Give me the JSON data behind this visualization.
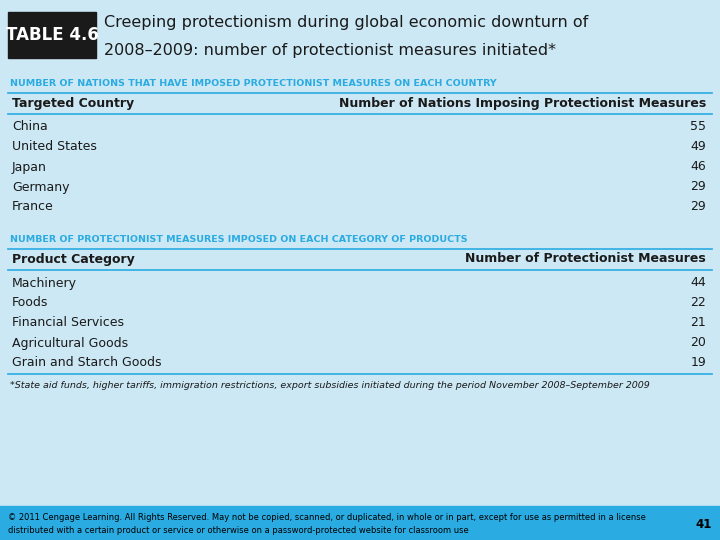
{
  "title_label": "TABLE 4.6",
  "title_text_line1": "Creeping protectionism during global economic downturn of",
  "title_text_line2": "2008–2009: number of protectionist measures initiated*",
  "section1_header": "NUMBER OF NATIONS THAT HAVE IMPOSED PROTECTIONIST MEASURES ON EACH COUNTRY",
  "section1_col1_header": "Targeted Country",
  "section1_col2_header": "Number of Nations Imposing Protectionist Measures",
  "section1_rows": [
    [
      "China",
      "55"
    ],
    [
      "United States",
      "49"
    ],
    [
      "Japan",
      "46"
    ],
    [
      "Germany",
      "29"
    ],
    [
      "France",
      "29"
    ]
  ],
  "section2_header": "NUMBER OF PROTECTIONIST MEASURES IMPOSED ON EACH CATEGORY OF PRODUCTS",
  "section2_col1_header": "Product Category",
  "section2_col2_header": "Number of Protectionist Measures",
  "section2_rows": [
    [
      "Machinery",
      "44"
    ],
    [
      "Foods",
      "22"
    ],
    [
      "Financial Services",
      "21"
    ],
    [
      "Agricultural Goods",
      "20"
    ],
    [
      "Grain and Starch Goods",
      "19"
    ]
  ],
  "footnote": "*State aid funds, higher tariffs, immigration restrictions, export subsidies initiated during the period November 2008–September 2009",
  "footer_line1": "© 2011 Cengage Learning. All Rights Reserved. May not be copied, scanned, or duplicated, in whole or in part, except for use as permitted in a license",
  "footer_line2": "distributed with a certain product or service or otherwise on a password-protected website for classroom use",
  "footer_page": "41",
  "bg_color": "#cce8f4",
  "title_label_bg": "#1a1a1a",
  "title_text_color": "#1a1a1a",
  "section_header_color": "#2aabe2",
  "col_header_text_color": "#1a1a1a",
  "row_text_color": "#1a1a1a",
  "line_color": "#2aabe2",
  "footer_bg": "#2aabe2",
  "footer_text_color": "#000000",
  "title_font_size": 11.5,
  "section_header_font_size": 6.8,
  "col_header_font_size": 9,
  "row_font_size": 9,
  "footnote_font_size": 6.8,
  "footer_font_size": 6.0
}
